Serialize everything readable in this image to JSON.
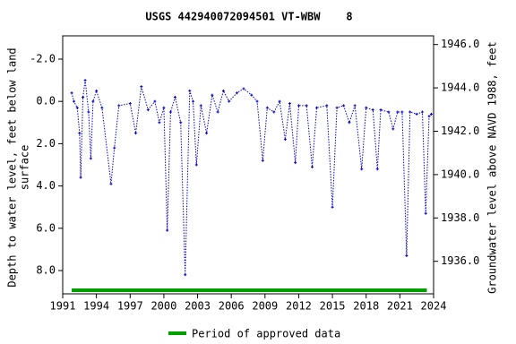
{
  "chart_data": {
    "type": "line",
    "title": "USGS 442940072094501 VT-WBW    8",
    "y_label": [
      "Depth to water level, feet below land",
      "surface"
    ],
    "y2_label": "Groundwater level above NAVD 1988, feet",
    "xlim": [
      1991,
      2024
    ],
    "xticks": [
      1991,
      1994,
      1997,
      2000,
      2003,
      2006,
      2009,
      2012,
      2015,
      2018,
      2021,
      2024
    ],
    "ylim": [
      -3.1,
      9.1
    ],
    "y_inverted": true,
    "yticks": [
      {
        "value": -2,
        "label": "-2.0"
      },
      {
        "value": 0,
        "label": "0.0"
      },
      {
        "value": 2,
        "label": "2.0"
      },
      {
        "value": 4,
        "label": "4.0"
      },
      {
        "value": 6,
        "label": "6.0"
      },
      {
        "value": 8,
        "label": "8.0"
      }
    ],
    "y2lim": [
      1934.5,
      1946.4
    ],
    "y2ticks": [
      {
        "value": 1936,
        "label": "1936.0"
      },
      {
        "value": 1938,
        "label": "1938.0"
      },
      {
        "value": 1940,
        "label": "1940.0"
      },
      {
        "value": 1942,
        "label": "1942.0"
      },
      {
        "value": 1944,
        "label": "1944.0"
      },
      {
        "value": 1946,
        "label": "1946.0"
      }
    ],
    "x": [
      1991.8,
      1992.0,
      1992.3,
      1992.5,
      1992.6,
      1992.8,
      1993.0,
      1993.3,
      1993.5,
      1993.7,
      1994.0,
      1994.5,
      1995.3,
      1995.6,
      1996.0,
      1997.0,
      1997.5,
      1998.0,
      1998.6,
      1999.2,
      1999.6,
      2000.0,
      2000.3,
      2000.6,
      2001.0,
      2001.5,
      2001.9,
      2002.3,
      2002.6,
      2002.9,
      2003.3,
      2003.8,
      2004.3,
      2004.8,
      2005.3,
      2005.8,
      2006.5,
      2007.1,
      2007.8,
      2008.3,
      2008.8,
      2009.2,
      2009.8,
      2010.3,
      2010.8,
      2011.2,
      2011.7,
      2012.0,
      2012.7,
      2013.2,
      2013.6,
      2014.5,
      2015.0,
      2015.4,
      2016.0,
      2016.5,
      2017.0,
      2017.6,
      2018.0,
      2018.6,
      2019.0,
      2019.3,
      2020.0,
      2020.4,
      2020.8,
      2021.2,
      2021.6,
      2021.9,
      2022.5,
      2023.0,
      2023.3,
      2023.6,
      2023.8
    ],
    "series": [
      {
        "name": "Depth to water level",
        "color": "#0000cc",
        "values": [
          -0.4,
          0.0,
          0.3,
          1.5,
          3.6,
          -0.2,
          -1.0,
          0.5,
          2.7,
          0.0,
          -0.5,
          0.3,
          3.9,
          2.2,
          0.2,
          0.1,
          1.5,
          -0.7,
          0.4,
          0.0,
          1.0,
          0.3,
          6.1,
          0.5,
          -0.2,
          1.0,
          8.2,
          -0.5,
          0.0,
          3.0,
          0.2,
          1.5,
          -0.3,
          0.5,
          -0.5,
          0.0,
          -0.4,
          -0.6,
          -0.3,
          0.0,
          2.8,
          0.3,
          0.5,
          0.0,
          1.8,
          0.1,
          2.9,
          0.2,
          0.2,
          3.1,
          0.3,
          0.2,
          5.0,
          0.3,
          0.2,
          1.0,
          0.2,
          3.2,
          0.3,
          0.4,
          3.2,
          0.4,
          0.5,
          1.3,
          0.5,
          0.5,
          7.3,
          0.5,
          0.6,
          0.5,
          5.3,
          0.7,
          0.6
        ]
      }
    ],
    "approved_period": {
      "name": "Period of approved data",
      "color": "#00a000",
      "x": [
        1991.8,
        2023.4
      ]
    }
  }
}
